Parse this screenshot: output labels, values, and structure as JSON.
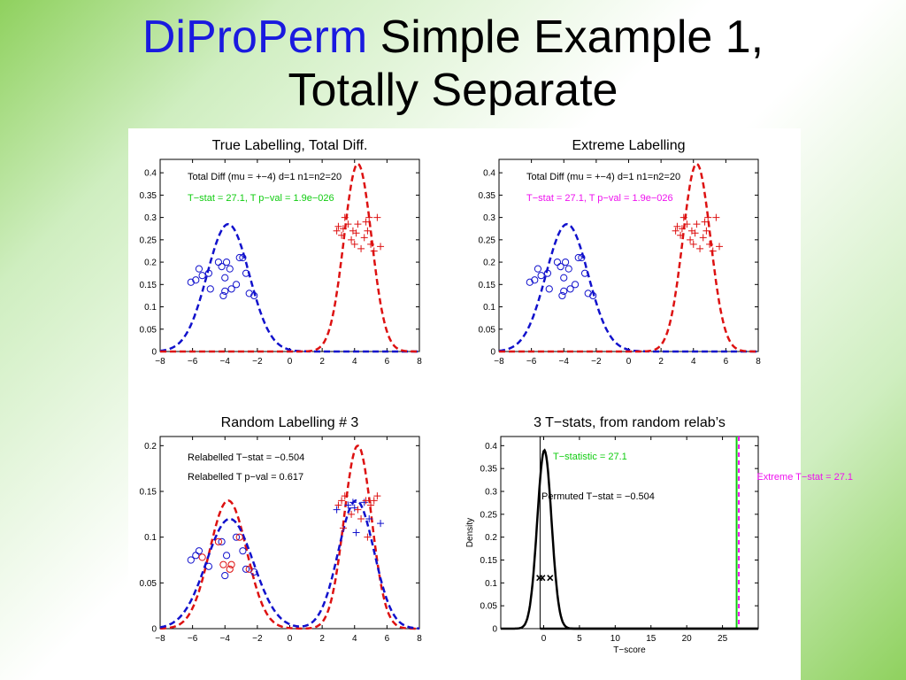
{
  "slide": {
    "title_accent": "DiProPerm",
    "title_rest": " Simple Example 1,",
    "title_line2": "Totally Separate"
  },
  "colors": {
    "blue": "#1111cc",
    "red": "#dd1111",
    "green": "#11cc11",
    "magenta": "#ee11ee",
    "black": "#000000"
  },
  "chart_data": [
    {
      "type": "line",
      "title": "True Labelling, Total Diff.",
      "xlim": [
        -8,
        8
      ],
      "ylim": [
        0,
        0.43
      ],
      "xticks": [
        "−8",
        "−6",
        "−4",
        "−2",
        "0",
        "2",
        "4",
        "6",
        "8"
      ],
      "yticks": [
        "0",
        "0.05",
        "0.1",
        "0.15",
        "0.2",
        "0.25",
        "0.3",
        "0.35",
        "0.4"
      ],
      "annotations": [
        {
          "text": "Total Diff (mu = +−4) d=1 n1=n2=20",
          "color": "black"
        },
        {
          "text": "T−stat = 27.1, T p−val = 1.9e−026",
          "color": "green"
        }
      ],
      "series": [
        {
          "color": "blue",
          "kind": "density",
          "mean": -3.8,
          "sd": 1.3,
          "peak": 0.285
        },
        {
          "color": "red",
          "kind": "density",
          "mean": 4.2,
          "sd": 0.85,
          "peak": 0.42
        }
      ],
      "points": [
        {
          "color": "blue",
          "marker": "o",
          "xy": [
            [
              -6.1,
              0.155
            ],
            [
              -5.8,
              0.16
            ],
            [
              -5.6,
              0.185
            ],
            [
              -5.4,
              0.17
            ],
            [
              -5.0,
              0.175
            ],
            [
              -4.9,
              0.14
            ],
            [
              -4.4,
              0.2
            ],
            [
              -4.2,
              0.19
            ],
            [
              -4.0,
              0.165
            ],
            [
              -3.9,
              0.2
            ],
            [
              -3.7,
              0.185
            ],
            [
              -3.6,
              0.14
            ],
            [
              -3.3,
              0.15
            ],
            [
              -3.1,
              0.21
            ],
            [
              -2.9,
              0.21
            ],
            [
              -2.7,
              0.175
            ],
            [
              -2.5,
              0.13
            ],
            [
              -2.2,
              0.125
            ],
            [
              -4.1,
              0.125
            ],
            [
              -4.0,
              0.135
            ]
          ]
        },
        {
          "color": "red",
          "marker": "+",
          "xy": [
            [
              2.9,
              0.27
            ],
            [
              3.0,
              0.28
            ],
            [
              3.2,
              0.26
            ],
            [
              3.4,
              0.3
            ],
            [
              3.6,
              0.285
            ],
            [
              3.8,
              0.25
            ],
            [
              3.9,
              0.27
            ],
            [
              4.0,
              0.24
            ],
            [
              4.1,
              0.265
            ],
            [
              4.2,
              0.285
            ],
            [
              4.4,
              0.23
            ],
            [
              4.6,
              0.255
            ],
            [
              4.7,
              0.29
            ],
            [
              4.8,
              0.27
            ],
            [
              4.9,
              0.3
            ],
            [
              5.0,
              0.24
            ],
            [
              5.2,
              0.225
            ],
            [
              5.4,
              0.3
            ],
            [
              5.6,
              0.235
            ],
            [
              3.3,
              0.275
            ]
          ]
        }
      ]
    },
    {
      "type": "line",
      "title": "Extreme Labelling",
      "xlim": [
        -8,
        8
      ],
      "ylim": [
        0,
        0.43
      ],
      "xticks": [
        "−8",
        "−6",
        "−4",
        "−2",
        "0",
        "2",
        "4",
        "6",
        "8"
      ],
      "yticks": [
        "0",
        "0.05",
        "0.1",
        "0.15",
        "0.2",
        "0.25",
        "0.3",
        "0.35",
        "0.4"
      ],
      "annotations": [
        {
          "text": "Total Diff (mu = +−4) d=1 n1=n2=20",
          "color": "black"
        },
        {
          "text": "T−stat = 27.1, T p−val = 1.9e−026",
          "color": "magenta"
        }
      ],
      "series": [
        {
          "color": "blue",
          "kind": "density",
          "mean": -3.8,
          "sd": 1.3,
          "peak": 0.285
        },
        {
          "color": "red",
          "kind": "density",
          "mean": 4.2,
          "sd": 0.85,
          "peak": 0.42
        }
      ],
      "points": [
        {
          "color": "blue",
          "marker": "o",
          "xy": [
            [
              -6.1,
              0.155
            ],
            [
              -5.8,
              0.16
            ],
            [
              -5.6,
              0.185
            ],
            [
              -5.4,
              0.17
            ],
            [
              -5.0,
              0.175
            ],
            [
              -4.9,
              0.14
            ],
            [
              -4.4,
              0.2
            ],
            [
              -4.2,
              0.19
            ],
            [
              -4.0,
              0.165
            ],
            [
              -3.9,
              0.2
            ],
            [
              -3.7,
              0.185
            ],
            [
              -3.6,
              0.14
            ],
            [
              -3.3,
              0.15
            ],
            [
              -3.1,
              0.21
            ],
            [
              -2.9,
              0.21
            ],
            [
              -2.7,
              0.175
            ],
            [
              -2.5,
              0.13
            ],
            [
              -2.2,
              0.125
            ],
            [
              -4.1,
              0.125
            ],
            [
              -4.0,
              0.135
            ]
          ]
        },
        {
          "color": "red",
          "marker": "+",
          "xy": [
            [
              2.9,
              0.27
            ],
            [
              3.0,
              0.28
            ],
            [
              3.2,
              0.26
            ],
            [
              3.4,
              0.3
            ],
            [
              3.6,
              0.285
            ],
            [
              3.8,
              0.25
            ],
            [
              3.9,
              0.27
            ],
            [
              4.0,
              0.24
            ],
            [
              4.1,
              0.265
            ],
            [
              4.2,
              0.285
            ],
            [
              4.4,
              0.23
            ],
            [
              4.6,
              0.255
            ],
            [
              4.7,
              0.29
            ],
            [
              4.8,
              0.27
            ],
            [
              4.9,
              0.3
            ],
            [
              5.0,
              0.24
            ],
            [
              5.2,
              0.225
            ],
            [
              5.4,
              0.3
            ],
            [
              5.6,
              0.235
            ],
            [
              3.3,
              0.275
            ]
          ]
        }
      ]
    },
    {
      "type": "line",
      "title": "Random Labelling # 3",
      "xlim": [
        -8,
        8
      ],
      "ylim": [
        0,
        0.21
      ],
      "xticks": [
        "−8",
        "−6",
        "−4",
        "−2",
        "0",
        "2",
        "4",
        "6",
        "8"
      ],
      "yticks": [
        "0",
        "0.05",
        "0.1",
        "0.15",
        "0.2"
      ],
      "annotations": [
        {
          "text": "Relabelled T−stat = −0.504",
          "color": "black"
        },
        {
          "text": "Relabelled T p−val = 0.617",
          "color": "black"
        }
      ],
      "series": [
        {
          "color": "red",
          "kind": "mixture",
          "m1": -3.8,
          "s1": 1.15,
          "p1": 0.14,
          "m2": 4.2,
          "s2": 0.85,
          "p2": 0.2
        },
        {
          "color": "blue",
          "kind": "mixture",
          "m1": -3.7,
          "s1": 1.45,
          "p1": 0.12,
          "m2": 4.1,
          "s2": 1.1,
          "p2": 0.14
        }
      ],
      "points": [
        {
          "color": "blue",
          "marker": "o",
          "xy": [
            [
              -6.1,
              0.075
            ],
            [
              -5.8,
              0.08
            ],
            [
              -5.6,
              0.085
            ],
            [
              -5.0,
              0.068
            ],
            [
              -4.2,
              0.095
            ],
            [
              -4.0,
              0.058
            ],
            [
              -3.9,
              0.08
            ],
            [
              -3.3,
              0.1
            ],
            [
              -2.9,
              0.085
            ],
            [
              -2.7,
              0.065
            ],
            [
              -2.2,
              0.062
            ]
          ]
        },
        {
          "color": "red",
          "marker": "o",
          "xy": [
            [
              -5.4,
              0.078
            ],
            [
              -4.4,
              0.095
            ],
            [
              -4.1,
              0.07
            ],
            [
              -3.7,
              0.065
            ],
            [
              -3.1,
              0.1
            ],
            [
              -2.5,
              0.065
            ],
            [
              -3.6,
              0.07
            ]
          ]
        },
        {
          "color": "blue",
          "marker": "+",
          "xy": [
            [
              2.9,
              0.13
            ],
            [
              3.6,
              0.135
            ],
            [
              4.0,
              0.132
            ],
            [
              4.1,
              0.105
            ],
            [
              4.6,
              0.138
            ],
            [
              4.9,
              0.12
            ],
            [
              5.6,
              0.115
            ],
            [
              3.9,
              0.138
            ]
          ]
        },
        {
          "color": "red",
          "marker": "+",
          "xy": [
            [
              3.0,
              0.135
            ],
            [
              3.2,
              0.14
            ],
            [
              3.4,
              0.145
            ],
            [
              3.8,
              0.125
            ],
            [
              4.2,
              0.13
            ],
            [
              4.4,
              0.12
            ],
            [
              4.7,
              0.14
            ],
            [
              5.0,
              0.135
            ],
            [
              5.2,
              0.14
            ],
            [
              5.4,
              0.145
            ],
            [
              3.3,
              0.11
            ],
            [
              4.8,
              0.1
            ]
          ]
        }
      ]
    },
    {
      "type": "line",
      "title": "3 T−stats, from random relab’s",
      "xlabel": "T−score",
      "ylabel": "Density",
      "xlim": [
        -6,
        30
      ],
      "ylim": [
        0,
        0.42
      ],
      "xticks": [
        "0",
        "5",
        "10",
        "15",
        "20",
        "25"
      ],
      "yticks": [
        "0",
        "0.05",
        "0.1",
        "0.15",
        "0.2",
        "0.25",
        "0.3",
        "0.35",
        "0.4"
      ],
      "annotations": [
        {
          "text": "T−statistic = 27.1",
          "color": "green"
        },
        {
          "text": "Extreme T−stat = 27.1",
          "color": "magenta"
        },
        {
          "text": "Permuted T−stat = −0.504",
          "color": "black"
        }
      ],
      "series": [
        {
          "color": "black",
          "kind": "density",
          "mean": 0.1,
          "sd": 1.0,
          "peak": 0.39
        }
      ],
      "vlines": [
        {
          "x": 27.1,
          "color": "green"
        },
        {
          "x": 27.1,
          "color": "magenta"
        },
        {
          "x": -0.504,
          "color": "black"
        }
      ],
      "points": [
        {
          "color": "black",
          "marker": "x",
          "xy": [
            [
              -0.6,
              0.111
            ],
            [
              -0.2,
              0.111
            ],
            [
              0.9,
              0.111
            ]
          ]
        }
      ]
    }
  ]
}
